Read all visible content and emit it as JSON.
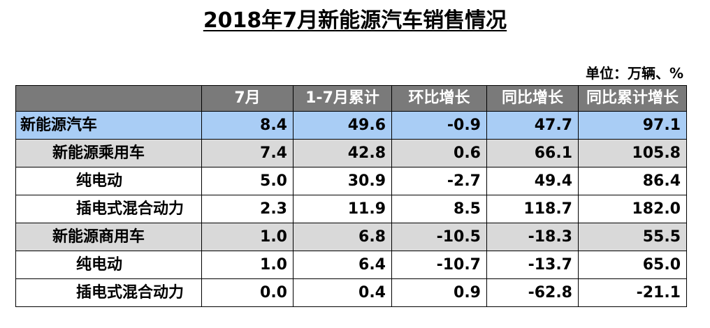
{
  "title": "2018年7月新能源汽车销售情况",
  "unit": "单位：万辆、%",
  "table": {
    "headers": [
      "",
      "7月",
      "1-7月累计",
      "环比增长",
      "同比增长",
      "同比累计增长"
    ],
    "rows": [
      {
        "label": "新能源汽车",
        "level": 0,
        "values": [
          "8.4",
          "49.6",
          "-0.9",
          "47.7",
          "97.1"
        ]
      },
      {
        "label": "新能源乘用车",
        "level": 1,
        "values": [
          "7.4",
          "42.8",
          "0.6",
          "66.1",
          "105.8"
        ]
      },
      {
        "label": "纯电动",
        "level": 2,
        "values": [
          "5.0",
          "30.9",
          "-2.7",
          "49.4",
          "86.4"
        ]
      },
      {
        "label": "插电式混合动力",
        "level": 2,
        "values": [
          "2.3",
          "11.9",
          "8.5",
          "118.7",
          "182.0"
        ]
      },
      {
        "label": "新能源商用车",
        "level": 1,
        "values": [
          "1.0",
          "6.8",
          "-10.5",
          "-18.3",
          "55.5"
        ]
      },
      {
        "label": "纯电动",
        "level": 2,
        "values": [
          "1.0",
          "6.4",
          "-10.7",
          "-13.7",
          "65.0"
        ]
      },
      {
        "label": "插电式混合动力",
        "level": 2,
        "values": [
          "0.0",
          "0.4",
          "0.9",
          "-62.8",
          "-21.1"
        ]
      }
    ]
  },
  "colors": {
    "header_bg": "#7a7a7a",
    "header_text": "#ffffff",
    "total_row_bg": "#a9cdf5",
    "category_row_bg": "#d9d9d9",
    "sub_row_bg": "#ffffff"
  }
}
